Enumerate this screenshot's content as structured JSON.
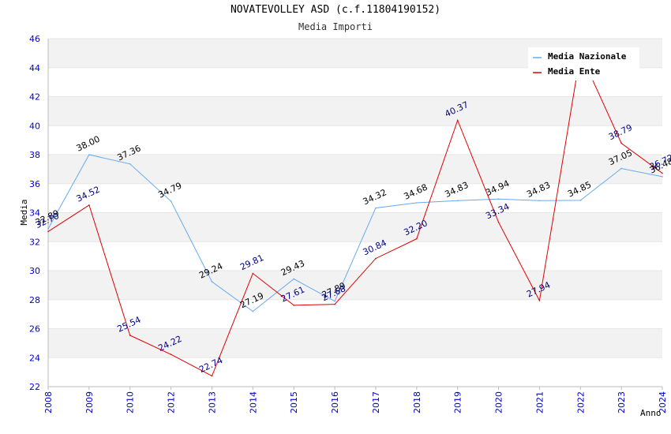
{
  "chart_data": {
    "type": "line",
    "title": "NOVATEVOLLEY ASD (c.f.11804190152)",
    "subtitle": "Media Importi",
    "xlabel": "Anno",
    "ylabel": "Media",
    "categories": [
      "2008",
      "2009",
      "2010",
      "2012",
      "2013",
      "2014",
      "2015",
      "2016",
      "2017",
      "2018",
      "2019",
      "2020",
      "2021",
      "2022",
      "2023",
      "2024"
    ],
    "ylim": [
      22,
      46
    ],
    "yticks": [
      "22",
      "24",
      "26",
      "28",
      "30",
      "32",
      "34",
      "36",
      "38",
      "40",
      "42",
      "44",
      "46"
    ],
    "series": [
      {
        "name": "Media Nazionale",
        "color": "#66aaee",
        "label_color": "#000000",
        "values": [
          32.89,
          38.0,
          37.36,
          34.79,
          29.24,
          27.19,
          29.43,
          27.89,
          34.32,
          34.68,
          34.83,
          34.94,
          34.83,
          34.85,
          37.05,
          36.48
        ],
        "labels": [
          "32.89",
          "38.00",
          "37.36",
          "34.79",
          "29.24",
          "27.19",
          "29.43",
          "27.89",
          "34.32",
          "34.68",
          "34.83",
          "34.94",
          "34.83",
          "34.85",
          "37.05",
          "36.48"
        ]
      },
      {
        "name": "Media Ente",
        "color": "#dd0000",
        "label_color": "#000088",
        "values": [
          32.7,
          34.52,
          25.54,
          24.22,
          22.74,
          29.81,
          27.61,
          27.68,
          30.84,
          32.2,
          40.37,
          33.34,
          27.94,
          45.0,
          38.79,
          36.72
        ],
        "labels": [
          "32.70",
          "34.52",
          "25.54",
          "24.22",
          "22.74",
          "29.81",
          "27.61",
          "27.68",
          "30.84",
          "32.20",
          "40.37",
          "33.34",
          "27.94",
          "",
          "38.79",
          "36.72"
        ]
      }
    ],
    "legend": "top-right",
    "grid": true
  }
}
